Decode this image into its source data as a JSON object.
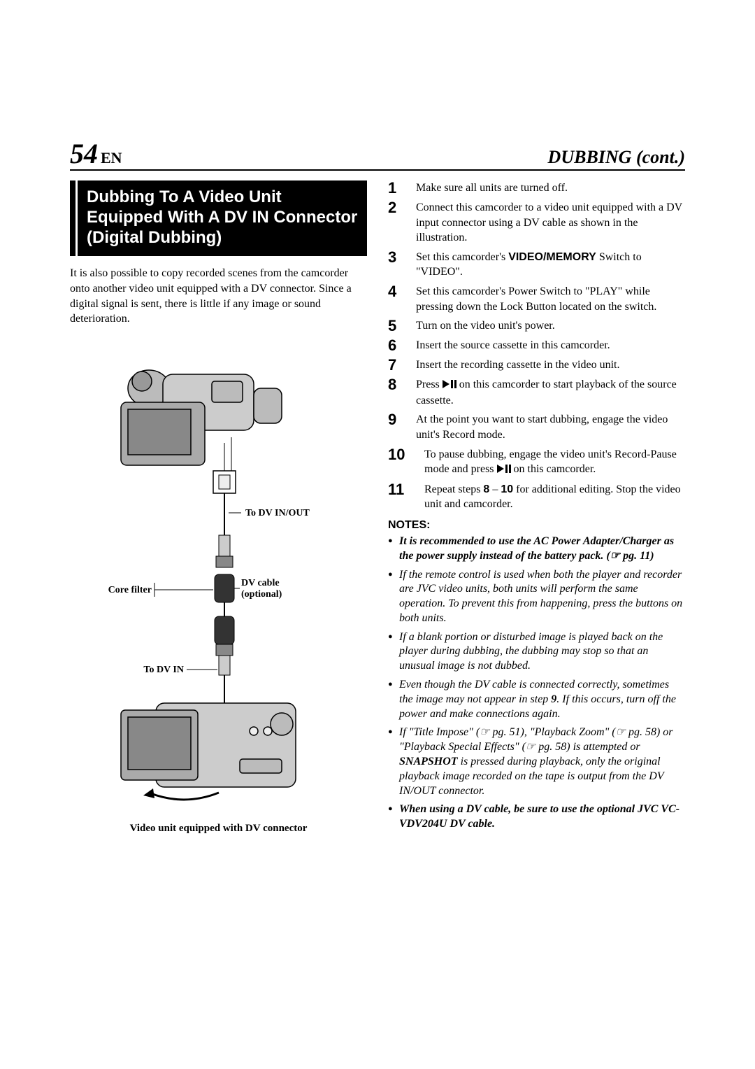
{
  "header": {
    "page_number": "54",
    "lang": "EN",
    "section": "DUBBING (cont.)"
  },
  "left": {
    "title": "Dubbing To A Video Unit Equipped With A DV IN Connector (Digital Dubbing)",
    "intro": "It is also possible to copy recorded scenes from the camcorder onto another video unit equipped with a DV connector. Since a digital signal is sent, there is little if any image or sound deterioration.",
    "labels": {
      "to_dv_in_out": "To DV IN/OUT",
      "core_filter": "Core filter",
      "dv_cable": "DV cable",
      "optional": "(optional)",
      "to_dv_in": "To DV IN",
      "caption": "Video unit equipped with DV connector"
    }
  },
  "steps": [
    {
      "n": "1",
      "t": "Make sure all units are turned off."
    },
    {
      "n": "2",
      "t": "Connect this camcorder to a video unit equipped with a DV input connector using a DV cable as shown in the illustration."
    },
    {
      "n": "3",
      "t_pre": "Set this camcorder's ",
      "b": "VIDEO/MEMORY",
      "t_post": " Switch to \"VIDEO\"."
    },
    {
      "n": "4",
      "t": "Set this camcorder's Power Switch to \"PLAY\" while pressing down the Lock Button located on the switch."
    },
    {
      "n": "5",
      "t": "Turn on the video unit's power."
    },
    {
      "n": "6",
      "t": "Insert the source cassette in this camcorder."
    },
    {
      "n": "7",
      "t": "Insert the recording cassette in the video unit."
    },
    {
      "n": "8",
      "t_pre": "Press ",
      "icon": true,
      "t_post": " on this camcorder to start playback of the source cassette."
    },
    {
      "n": "9",
      "t": "At the point you want to start dubbing, engage the video unit's Record mode."
    },
    {
      "n": "10",
      "t_pre": "To pause dubbing, engage the video unit's Record-Pause mode and press ",
      "icon": true,
      "t_post": " on this camcorder."
    },
    {
      "n": "11",
      "t_pre": "Repeat steps ",
      "b": "8",
      "t_mid": " – ",
      "b2": "10",
      "t_post": " for additional editing. Stop the video unit and camcorder."
    }
  ],
  "notes_h": "NOTES:",
  "notes": [
    {
      "bold": true,
      "t": "It is recommended to use the AC Power Adapter/Charger as the power supply instead of the battery pack. (☞ pg. 11)"
    },
    {
      "t": "If the remote control is used when both the player and recorder are JVC video units, both units will perform the same operation. To prevent this from happening, press the buttons on both units."
    },
    {
      "t": "If a blank portion or disturbed image is played back on the player during dubbing, the dubbing may stop so that an unusual image is not dubbed."
    },
    {
      "t_pre": "Even though the DV cable is connected correctly, sometimes the image may not appear in step ",
      "b": "9",
      "t_post": ". If this occurs, turn off the power and make connections again."
    },
    {
      "t_pre": "If \"Title Impose\" (☞ pg. 51), \"Playback Zoom\" (☞ pg. 58) or \"Playback Special Effects\" (☞ pg. 58) is attempted or ",
      "b": "SNAPSHOT",
      "t_post": " is pressed during playback, only the original playback image recorded on the tape is output from the DV IN/OUT connector."
    },
    {
      "bold": true,
      "t": "When using a DV cable, be sure to use the optional JVC VC-VDV204U DV cable."
    }
  ],
  "icon_alt": "play/pause"
}
